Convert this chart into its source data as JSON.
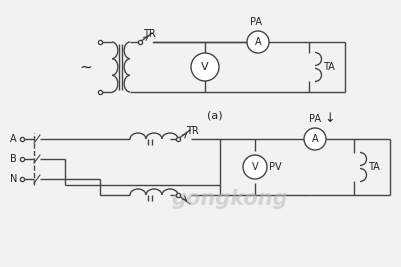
{
  "bg_color": "#f2f2f2",
  "line_color": "#444444",
  "text_color": "#222222",
  "label_TR": "TR",
  "label_PA": "PA",
  "label_TA": "TA",
  "label_A": "A",
  "label_V": "V",
  "label_PV": "PV",
  "label_tilde": "~",
  "label_node_A": "A",
  "label_node_B": "B",
  "label_node_N": "N",
  "title_a": "(a)",
  "arrow_down": "↓"
}
